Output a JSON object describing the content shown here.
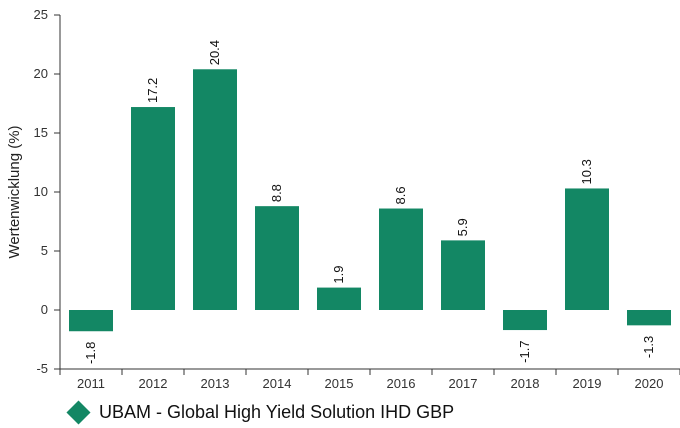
{
  "chart_data": {
    "type": "bar",
    "ylabel": "Wertenwicklung (%)",
    "xlabel": "",
    "ylim": [
      -5,
      25
    ],
    "yticks": [
      -5,
      0,
      5,
      10,
      15,
      20,
      25
    ],
    "grid": false,
    "legend_position": "bottom-left",
    "categories": [
      "2011",
      "2012",
      "2013",
      "2014",
      "2015",
      "2016",
      "2017",
      "2018",
      "2019",
      "2020"
    ],
    "series": [
      {
        "name": "UBAM - Global High Yield Solution IHD GBP",
        "color": "#138764",
        "values": [
          -1.8,
          17.2,
          20.4,
          8.8,
          1.9,
          8.6,
          5.9,
          -1.7,
          10.3,
          -1.3
        ],
        "labels": [
          "-1.8",
          "17.2",
          "20.4",
          "8.8",
          "1.9",
          "8.6",
          "5.9",
          "-1.7",
          "10.3",
          "-1.3"
        ]
      }
    ]
  }
}
